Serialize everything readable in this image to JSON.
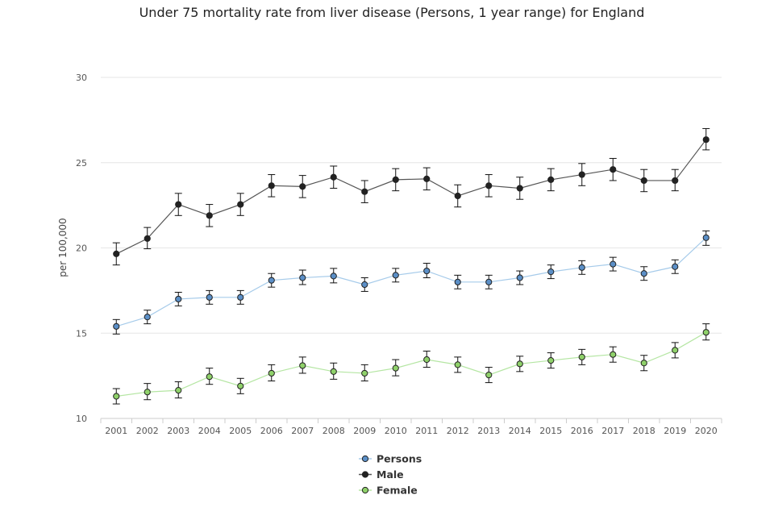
{
  "chart_data": {
    "type": "line",
    "title": "Under 75 mortality rate from liver disease (Persons, 1 year range) for England",
    "xlabel": "",
    "ylabel": "per 100,000",
    "ylim": [
      10,
      30
    ],
    "yticks": [
      10,
      15,
      20,
      25,
      30
    ],
    "grid": true,
    "legend_position": "bottom-center",
    "categories": [
      "2001",
      "2002",
      "2003",
      "2004",
      "2005",
      "2006",
      "2007",
      "2008",
      "2009",
      "2010",
      "2011",
      "2012",
      "2013",
      "2014",
      "2015",
      "2016",
      "2017",
      "2018",
      "2019",
      "2020"
    ],
    "series": [
      {
        "name": "Persons",
        "line_color": "#a6cbea",
        "marker_fill": "#5b8fc7",
        "values": [
          15.4,
          15.95,
          17.0,
          17.1,
          17.1,
          18.1,
          18.25,
          18.35,
          17.85,
          18.4,
          18.65,
          18.0,
          18.0,
          18.25,
          18.6,
          18.85,
          19.05,
          18.5,
          18.9,
          20.6
        ],
        "lower": [
          14.95,
          15.55,
          16.6,
          16.7,
          16.7,
          17.7,
          17.85,
          17.95,
          17.45,
          18.0,
          18.25,
          17.6,
          17.6,
          17.85,
          18.2,
          18.45,
          18.65,
          18.1,
          18.5,
          20.15
        ],
        "upper": [
          15.8,
          16.35,
          17.4,
          17.5,
          17.5,
          18.5,
          18.7,
          18.8,
          18.25,
          18.8,
          19.1,
          18.4,
          18.4,
          18.65,
          19.0,
          19.25,
          19.45,
          18.9,
          19.3,
          21.0
        ]
      },
      {
        "name": "Male",
        "line_color": "#555555",
        "marker_fill": "#222222",
        "values": [
          19.65,
          20.55,
          22.55,
          21.9,
          22.55,
          23.65,
          23.6,
          24.15,
          23.3,
          24.0,
          24.05,
          23.05,
          23.65,
          23.5,
          24.0,
          24.3,
          24.6,
          23.95,
          23.95,
          26.35
        ],
        "lower": [
          19.0,
          19.95,
          21.9,
          21.25,
          21.9,
          23.0,
          22.95,
          23.5,
          22.65,
          23.35,
          23.4,
          22.4,
          23.0,
          22.85,
          23.35,
          23.65,
          23.95,
          23.3,
          23.35,
          25.75
        ],
        "upper": [
          20.3,
          21.2,
          23.2,
          22.55,
          23.2,
          24.3,
          24.25,
          24.8,
          23.95,
          24.65,
          24.7,
          23.7,
          24.3,
          24.15,
          24.65,
          24.95,
          25.25,
          24.6,
          24.6,
          27.0
        ]
      },
      {
        "name": "Female",
        "line_color": "#b5e6a3",
        "marker_fill": "#8fd16a",
        "values": [
          11.3,
          11.55,
          11.65,
          12.45,
          11.9,
          12.65,
          13.1,
          12.75,
          12.65,
          12.95,
          13.45,
          13.15,
          12.55,
          13.2,
          13.4,
          13.6,
          13.75,
          13.25,
          14.0,
          15.05
        ],
        "lower": [
          10.85,
          11.1,
          11.2,
          12.0,
          11.45,
          12.2,
          12.65,
          12.3,
          12.2,
          12.5,
          13.0,
          12.7,
          12.1,
          12.75,
          12.95,
          13.15,
          13.3,
          12.8,
          13.55,
          14.6
        ],
        "upper": [
          11.75,
          12.05,
          12.15,
          12.95,
          12.35,
          13.15,
          13.6,
          13.25,
          13.15,
          13.45,
          13.95,
          13.6,
          13.0,
          13.65,
          13.85,
          14.05,
          14.2,
          13.7,
          14.45,
          15.55
        ]
      }
    ]
  }
}
